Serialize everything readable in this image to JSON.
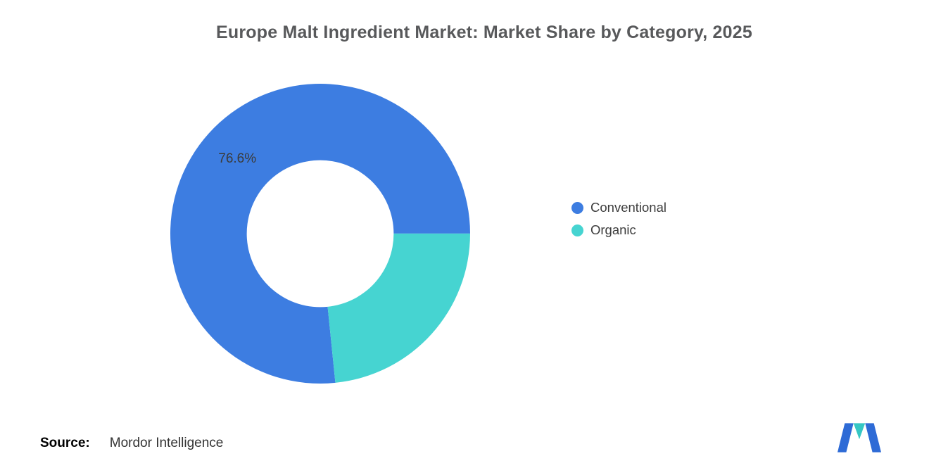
{
  "title": "Europe Malt Ingredient Market: Market Share by Category, 2025",
  "chart_data": {
    "type": "pie",
    "subtype": "donut",
    "title": "Europe Malt Ingredient Market: Market Share by Category, 2025",
    "units": "%",
    "series": [
      {
        "name": "Conventional",
        "value": 76.6,
        "color": "#3d7de1",
        "label": "76.6%"
      },
      {
        "name": "Organic",
        "value": 23.4,
        "color": "#46d4d1",
        "label": ""
      }
    ],
    "start_angle_deg": 174.2,
    "direction": "clockwise",
    "inner_radius_ratio": 0.49,
    "legend_position": "right",
    "data_labels_shown": [
      "76.6%"
    ]
  },
  "source": {
    "label": "Source:",
    "text": "Mordor Intelligence"
  },
  "logo": {
    "name": "mordor-intelligence-logo",
    "colors": {
      "blue": "#2e6bd6",
      "teal": "#35c7c4"
    }
  }
}
